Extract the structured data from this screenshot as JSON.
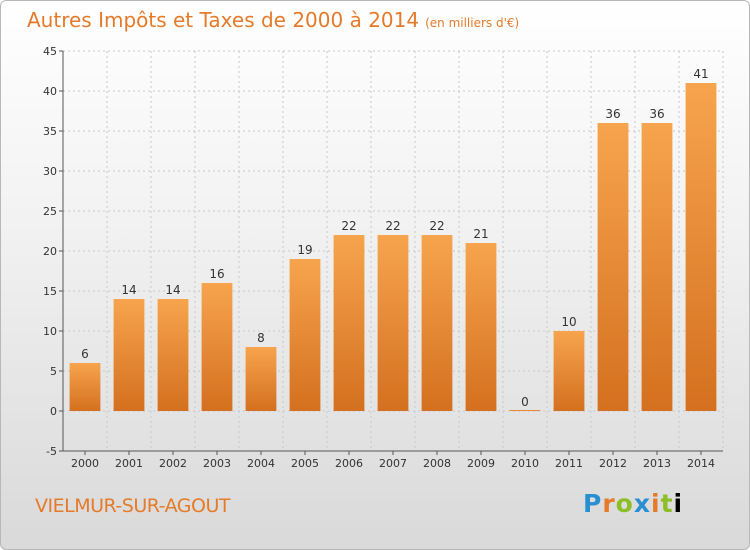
{
  "header": {
    "title": "Autres Impôts et Taxes de 2000 à 2014",
    "subtitle": "(en milliers d'€)"
  },
  "footer": {
    "town": "VIELMUR-SUR-AGOUT",
    "logo": "Proxiti"
  },
  "colors": {
    "bar_top": "#f7a44e",
    "bar_bottom": "#d4701f",
    "accent": "#e57b2a"
  },
  "chart_data": {
    "type": "bar",
    "title": "Autres Impôts et Taxes de 2000 à 2014",
    "subtitle": "(en milliers d'€)",
    "categories": [
      "2000",
      "2001",
      "2002",
      "2003",
      "2004",
      "2005",
      "2006",
      "2007",
      "2008",
      "2009",
      "2010",
      "2011",
      "2012",
      "2013",
      "2014"
    ],
    "values": [
      6,
      14,
      14,
      16,
      8,
      19,
      22,
      22,
      22,
      21,
      0,
      10,
      36,
      36,
      41
    ],
    "ylim": [
      -5,
      45
    ],
    "yticks": [
      -5,
      0,
      5,
      10,
      15,
      20,
      25,
      30,
      35,
      40,
      45
    ],
    "grid": true,
    "legend": "none"
  }
}
